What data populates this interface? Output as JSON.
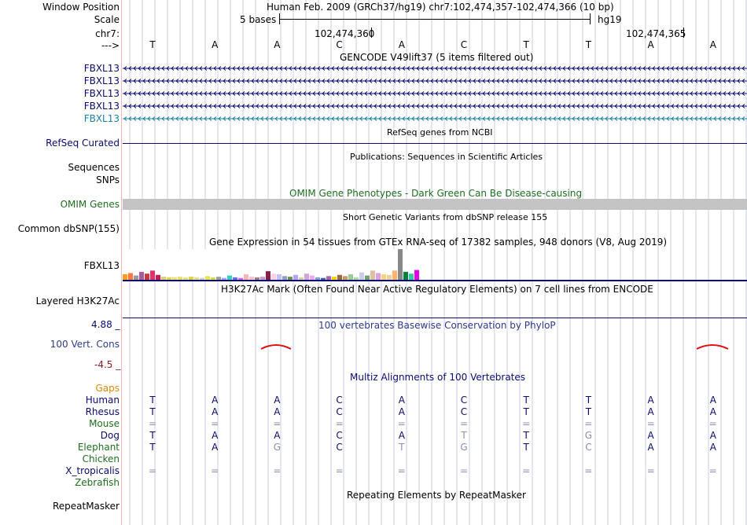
{
  "header": {
    "window_position_label": "Window Position",
    "window_position_value": "Human Feb. 2009 (GRCh37/hg19)   chr7:102,474,357-102,474,366 (10 bp)",
    "scale_label": "Scale",
    "scale_bases": "5 bases",
    "scale_assembly": "hg19",
    "chrom_label": "chr7:",
    "coord_1": "102,474,360",
    "coord_2": "102,474,365",
    "strand_label": "--->",
    "bases": [
      "T",
      "A",
      "A",
      "C",
      "A",
      "C",
      "T",
      "T",
      "A",
      "A"
    ]
  },
  "gencode": {
    "title": "GENCODE V49lift37 (5 items filtered out)",
    "items": [
      "FBXL13",
      "FBXL13",
      "FBXL13",
      "FBXL13",
      "FBXL13"
    ],
    "colors": [
      "#0a0a6e",
      "#0a0a6e",
      "#0a0a6e",
      "#0a0a6e",
      "#1a7fa0"
    ]
  },
  "refseq": {
    "title": "RefSeq genes from NCBI",
    "label": "RefSeq Curated"
  },
  "publications": {
    "title": "Publications: Sequences in Scientific Articles",
    "label_1": "Sequences",
    "label_2": "SNPs"
  },
  "omim": {
    "title": "OMIM Gene Phenotypes - Dark Green Can Be Disease-causing",
    "label": "OMIM Genes"
  },
  "dbsnp": {
    "title": "Short Genetic Variants from dbSNP release 155",
    "label": "Common dbSNP(155)"
  },
  "gtex": {
    "title": "Gene Expression in 54 tissues from GTEx RNA-seq of 17382 samples, 948 donors (V8, Aug 2019)",
    "label": "FBXL13",
    "bar_values": [
      0.18,
      0.22,
      0.14,
      0.26,
      0.2,
      0.3,
      0.16,
      0.1,
      0.08,
      0.08,
      0.1,
      0.08,
      0.1,
      0.08,
      0.06,
      0.12,
      0.08,
      0.1,
      0.06,
      0.14,
      0.08,
      0.06,
      0.18,
      0.1,
      0.08,
      0.1,
      0.28,
      0.2,
      0.18,
      0.12,
      0.1,
      0.16,
      0.08,
      0.2,
      0.14,
      0.08,
      0.06,
      0.12,
      0.1,
      0.16,
      0.12,
      0.18,
      0.08,
      0.24,
      0.14,
      0.3,
      0.22,
      0.18,
      0.16,
      0.3,
      1.0,
      0.26,
      0.2,
      0.32
    ],
    "bar_colors": [
      "#ff9c22",
      "#ff7a3a",
      "#9a9a9a",
      "#ad5a9a",
      "#c53a3a",
      "#e62e6a",
      "#bf1f4f",
      "#e6c87a",
      "#e6d64a",
      "#f0e06a",
      "#e8e06a",
      "#e6e37a",
      "#ddd34c",
      "#e0e08a",
      "#cccccc",
      "#e6e64a",
      "#d9d94a",
      "#a0a0a0",
      "#a0a0ff",
      "#33cccc",
      "#6a6aff",
      "#cc66ff",
      "#ffb3b3",
      "#ffc0cb",
      "#a08080",
      "#cc99cc",
      "#8a1f4a",
      "#ffd0e0",
      "#c0c0ff",
      "#90a0c0",
      "#6f8f4f",
      "#b3a0ff",
      "#d0d0a0",
      "#d6a3d6",
      "#eeaaff",
      "#80a0d0",
      "#4060c0",
      "#aa66aa",
      "#ffcc00",
      "#9b6a3a",
      "#cc9966",
      "#99cc99",
      "#a0e0a0",
      "#ccccee",
      "#70a070",
      "#e0c0a0",
      "#e0a0e0",
      "#ffd080",
      "#f0d0a0",
      "#ffb36b",
      "#888888",
      "#008040",
      "#33cc99",
      "#e600e6"
    ]
  },
  "h3k27ac": {
    "title": "H3K27Ac Mark (Often Found Near Active Regulatory Elements) on 7 cell lines from ENCODE",
    "label": "Layered H3K27Ac"
  },
  "phylop": {
    "title": "100 vertebrates Basewise Conservation by PhyloP",
    "label": "100 Vert. Cons",
    "max_label": "4.88 _",
    "min_label": "-4.5 _"
  },
  "multiz": {
    "title": "Multiz Alignments of 100 Vertebrates",
    "gaps_label": "Gaps",
    "species": [
      {
        "name": "Human",
        "color": "#0a0a6e",
        "bases": [
          "T",
          "A",
          "A",
          "C",
          "A",
          "C",
          "T",
          "T",
          "A",
          "A"
        ],
        "base_colors": [
          "#0a0a6e",
          "#0a0a6e",
          "#0a0a6e",
          "#0a0a6e",
          "#0a0a6e",
          "#0a0a6e",
          "#0a0a6e",
          "#0a0a6e",
          "#0a0a6e",
          "#0a0a6e"
        ]
      },
      {
        "name": "Rhesus",
        "color": "#0a0a6e",
        "bases": [
          "T",
          "A",
          "A",
          "C",
          "A",
          "C",
          "T",
          "T",
          "A",
          "A"
        ],
        "base_colors": [
          "#0a0a6e",
          "#0a0a6e",
          "#0a0a6e",
          "#0a0a6e",
          "#0a0a6e",
          "#0a0a6e",
          "#0a0a6e",
          "#0a0a6e",
          "#0a0a6e",
          "#0a0a6e"
        ]
      },
      {
        "name": "Mouse",
        "color": "#1e6e1e",
        "bases": [
          "=",
          "=",
          "=",
          "=",
          "=",
          "=",
          "=",
          "=",
          "=",
          "="
        ],
        "base_colors": [
          "#8c8cb4",
          "#8c8cb4",
          "#8c8cb4",
          "#8c8cb4",
          "#8c8cb4",
          "#8c8cb4",
          "#8c8cb4",
          "#8c8cb4",
          "#8c8cb4",
          "#8c8cb4"
        ]
      },
      {
        "name": "Dog",
        "color": "#0a0a6e",
        "bases": [
          "T",
          "A",
          "A",
          "C",
          "A",
          "T",
          "T",
          "G",
          "A",
          "A"
        ],
        "base_colors": [
          "#0a0a6e",
          "#0a0a6e",
          "#0a0a6e",
          "#0a0a6e",
          "#0a0a6e",
          "#8c8cb4",
          "#0a0a6e",
          "#8c8cb4",
          "#0a0a6e",
          "#0a0a6e"
        ]
      },
      {
        "name": "Elephant",
        "color": "#1e6e1e",
        "bases": [
          "T",
          "A",
          "G",
          "C",
          "T",
          "G",
          "T",
          "C",
          "A",
          "A"
        ],
        "base_colors": [
          "#0a0a6e",
          "#0a0a6e",
          "#8c8cb4",
          "#0a0a6e",
          "#8c8cb4",
          "#8c8cb4",
          "#0a0a6e",
          "#8c8cb4",
          "#0a0a6e",
          "#0a0a6e"
        ]
      },
      {
        "name": "Chicken",
        "color": "#1e6e1e",
        "bases": [
          "",
          "",
          "",
          "",
          "",
          "",
          "",
          "",
          "",
          ""
        ],
        "base_colors": [
          "#8c8cb4",
          "#8c8cb4",
          "#8c8cb4",
          "#8c8cb4",
          "#8c8cb4",
          "#8c8cb4",
          "#8c8cb4",
          "#8c8cb4",
          "#8c8cb4",
          "#8c8cb4"
        ]
      },
      {
        "name": "X_tropicalis",
        "color": "#0a0a6e",
        "bases": [
          "=",
          "=",
          "=",
          "=",
          "=",
          "=",
          "=",
          "=",
          "=",
          "="
        ],
        "base_colors": [
          "#8c8cb4",
          "#8c8cb4",
          "#8c8cb4",
          "#8c8cb4",
          "#8c8cb4",
          "#8c8cb4",
          "#8c8cb4",
          "#8c8cb4",
          "#8c8cb4",
          "#8c8cb4"
        ]
      },
      {
        "name": "Zebrafish",
        "color": "#1e6e1e",
        "bases": [
          "",
          "",
          "",
          "",
          "",
          "",
          "",
          "",
          "",
          ""
        ],
        "base_colors": [
          "#8c8cb4",
          "#8c8cb4",
          "#8c8cb4",
          "#8c8cb4",
          "#8c8cb4",
          "#8c8cb4",
          "#8c8cb4",
          "#8c8cb4",
          "#8c8cb4",
          "#8c8cb4"
        ]
      }
    ]
  },
  "repeatmasker": {
    "title": "Repeating Elements by RepeatMasker",
    "label": "RepeatMasker"
  }
}
